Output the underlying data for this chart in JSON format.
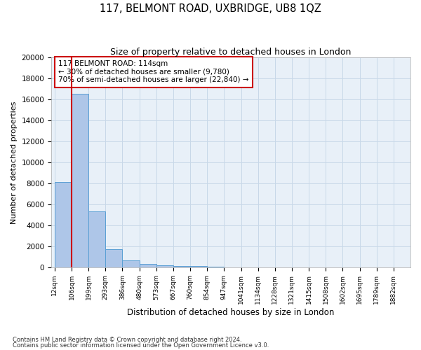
{
  "title": "117, BELMONT ROAD, UXBRIDGE, UB8 1QZ",
  "subtitle": "Size of property relative to detached houses in London",
  "xlabel": "Distribution of detached houses by size in London",
  "ylabel": "Number of detached properties",
  "bar_labels": [
    "12sqm",
    "106sqm",
    "199sqm",
    "293sqm",
    "386sqm",
    "480sqm",
    "573sqm",
    "667sqm",
    "760sqm",
    "854sqm",
    "947sqm",
    "1041sqm",
    "1134sqm",
    "1228sqm",
    "1321sqm",
    "1415sqm",
    "1508sqm",
    "1602sqm",
    "1695sqm",
    "1789sqm",
    "1882sqm"
  ],
  "bar_heights": [
    8100,
    16500,
    5300,
    1750,
    650,
    330,
    200,
    150,
    130,
    100,
    0,
    0,
    0,
    0,
    0,
    0,
    0,
    0,
    0,
    0,
    0
  ],
  "bar_color": "#aec6e8",
  "bar_edge_color": "#5a9fd4",
  "annotation_text": "117 BELMONT ROAD: 114sqm\n← 30% of detached houses are smaller (9,780)\n70% of semi-detached houses are larger (22,840) →",
  "annotation_box_color": "#ffffff",
  "annotation_box_edge_color": "#cc0000",
  "vline_color": "#cc0000",
  "vline_x": 1.0,
  "ylim": [
    0,
    20000
  ],
  "yticks": [
    0,
    2000,
    4000,
    6000,
    8000,
    10000,
    12000,
    14000,
    16000,
    18000,
    20000
  ],
  "grid_color": "#c8d8e8",
  "bg_color": "#e8f0f8",
  "footer1": "Contains HM Land Registry data © Crown copyright and database right 2024.",
  "footer2": "Contains public sector information licensed under the Open Government Licence v3.0."
}
